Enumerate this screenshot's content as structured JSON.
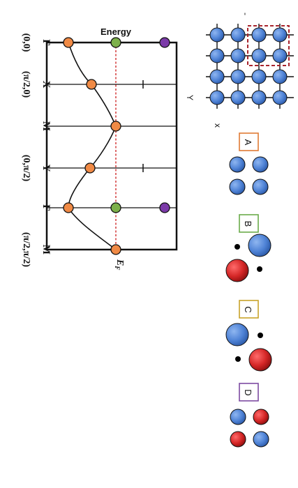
{
  "band_plot": {
    "energy_label": "Energy",
    "fermi_label": "E",
    "fermi_sub": "F",
    "kpoints": [
      {
        "label": "Γ",
        "coord": "(0,0)"
      },
      {
        "label": "X",
        "coord": "(π/2,0)"
      },
      {
        "label": "M",
        "coord": ""
      },
      {
        "label": "Y",
        "coord": "(0,π/2)"
      },
      {
        "label": "Γ",
        "coord": ""
      },
      {
        "label": "M",
        "coord": "(π/2,π/2)"
      }
    ],
    "band_color": "#f08a45",
    "level_color": "#7db04a",
    "purple_color": "#7b3aa8",
    "fermi_line_color": "#d43a3a"
  },
  "lattice": {
    "x_label": "x",
    "y_label": "Y",
    "atom_color": "#4f83d6",
    "highlight_color": "#a8242c"
  },
  "panels": [
    {
      "label": "A",
      "border_color": "#e07b35"
    },
    {
      "label": "B",
      "border_color": "#6aab4a"
    },
    {
      "label": "C",
      "border_color": "#c8a32a"
    },
    {
      "label": "D",
      "border_color": "#7d4ba2"
    }
  ],
  "colors": {
    "blue": "#4f83d6",
    "red": "#d42626"
  }
}
